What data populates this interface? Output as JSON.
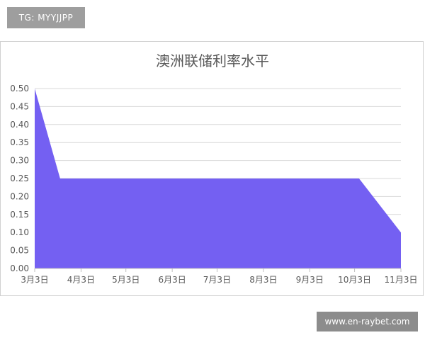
{
  "header": {
    "tag_text": "TG: MYYJJPP"
  },
  "footer": {
    "watermark_text": "www.en-raybet.com"
  },
  "colors": {
    "area_fill": "#7460f2",
    "grid": "#d9d9d9",
    "axis": "#bfbfbf",
    "text": "#595959"
  },
  "chart_data": {
    "type": "area",
    "title": "澳洲联储利率水平",
    "xlabel": "",
    "ylabel": "",
    "x_ticks": [
      "3月3日",
      "4月3日",
      "5月3日",
      "6月3日",
      "7月3日",
      "8月3日",
      "9月3日",
      "10月3日",
      "11月3日"
    ],
    "y_ticks": [
      "0.00",
      "0.05",
      "0.10",
      "0.15",
      "0.20",
      "0.25",
      "0.30",
      "0.35",
      "0.40",
      "0.45",
      "0.50"
    ],
    "ylim": [
      0,
      0.5
    ],
    "x_domain": [
      "3月3日",
      "11月3日"
    ],
    "grid": true,
    "legend": "none",
    "series": [
      {
        "points": [
          {
            "x": "3月3日",
            "y": 0.5
          },
          {
            "x": "3月20日",
            "y": 0.25
          },
          {
            "x": "10月6日",
            "y": 0.25
          },
          {
            "x": "11月3日",
            "y": 0.1
          }
        ]
      }
    ]
  }
}
